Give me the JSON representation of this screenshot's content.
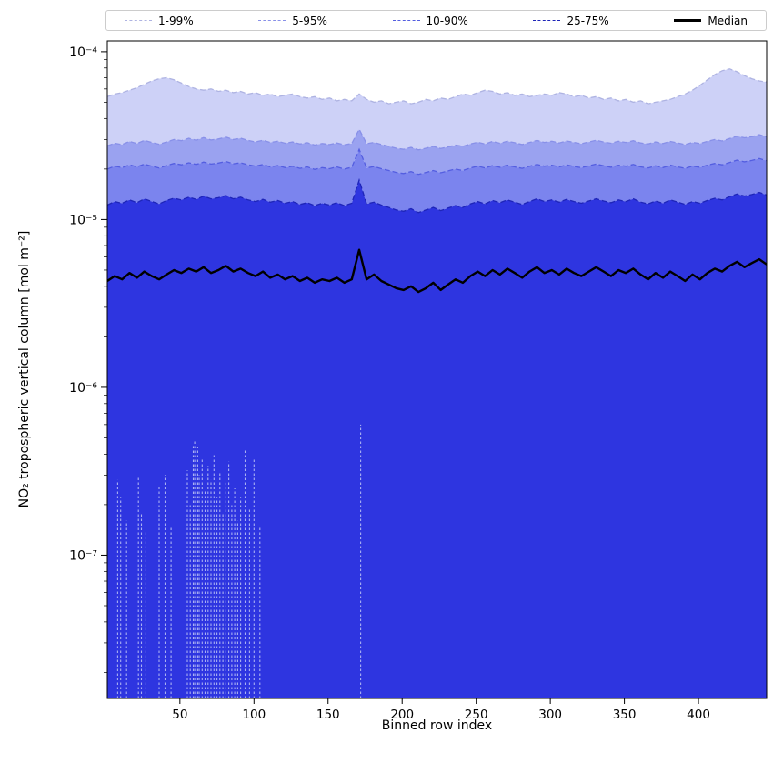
{
  "chart_data": {
    "type": "band",
    "title": "",
    "xlabel": "Binned row index",
    "ylabel": "NO₂ tropospheric vertical column [mol m⁻²]",
    "yscale": "log",
    "xlim": [
      1,
      446
    ],
    "ylim": [
      1.4e-08,
      0.000116
    ],
    "xticks": [
      50,
      100,
      150,
      200,
      250,
      300,
      350,
      400
    ],
    "yticks": [
      {
        "v": 0.0001,
        "label": "10⁻⁴"
      },
      {
        "v": 1e-05,
        "label": "10⁻⁵"
      },
      {
        "v": 1e-06,
        "label": "10⁻⁶"
      },
      {
        "v": 1e-07,
        "label": "10⁻⁷"
      }
    ],
    "x": [
      1,
      6,
      11,
      16,
      21,
      26,
      31,
      36,
      41,
      46,
      51,
      56,
      61,
      66,
      71,
      76,
      81,
      86,
      91,
      96,
      101,
      106,
      111,
      116,
      121,
      126,
      131,
      136,
      141,
      146,
      151,
      156,
      161,
      166,
      171,
      176,
      181,
      186,
      191,
      196,
      201,
      206,
      211,
      216,
      221,
      226,
      231,
      236,
      241,
      246,
      251,
      256,
      261,
      266,
      271,
      276,
      281,
      286,
      291,
      296,
      301,
      306,
      311,
      316,
      321,
      326,
      331,
      336,
      341,
      346,
      351,
      356,
      361,
      366,
      371,
      376,
      381,
      386,
      391,
      396,
      401,
      406,
      411,
      416,
      421,
      426,
      431,
      436,
      441,
      446
    ],
    "bands": [
      {
        "label": "1-99%",
        "edge": "p99",
        "scale": 1e-05,
        "fill": "#cdd1f7",
        "line": "#aeb3e2",
        "upper": [
          5.4,
          5.6,
          5.7,
          5.9,
          6.1,
          6.4,
          6.7,
          6.9,
          7.0,
          6.8,
          6.5,
          6.2,
          6.0,
          5.9,
          6.0,
          5.8,
          5.9,
          5.7,
          5.8,
          5.6,
          5.7,
          5.5,
          5.6,
          5.4,
          5.5,
          5.6,
          5.4,
          5.3,
          5.4,
          5.2,
          5.3,
          5.1,
          5.2,
          5.1,
          5.6,
          5.2,
          5.0,
          5.1,
          4.9,
          5.0,
          5.1,
          4.9,
          5.0,
          5.2,
          5.1,
          5.3,
          5.2,
          5.4,
          5.6,
          5.5,
          5.7,
          5.9,
          5.8,
          5.6,
          5.7,
          5.5,
          5.6,
          5.4,
          5.5,
          5.6,
          5.5,
          5.7,
          5.6,
          5.4,
          5.5,
          5.3,
          5.4,
          5.2,
          5.3,
          5.1,
          5.2,
          5.0,
          5.1,
          4.9,
          5.0,
          5.1,
          5.2,
          5.4,
          5.6,
          5.9,
          6.3,
          6.8,
          7.3,
          7.7,
          7.9,
          7.6,
          7.2,
          6.9,
          6.7,
          6.6
        ]
      },
      {
        "label": "5-95%",
        "edge": "p95",
        "scale": 1e-05,
        "fill": "#9aa2f0",
        "line": "#8890e8",
        "upper": [
          2.75,
          2.85,
          2.8,
          2.92,
          2.84,
          2.96,
          2.88,
          2.81,
          2.9,
          3.0,
          2.95,
          3.05,
          2.97,
          3.08,
          2.98,
          3.02,
          3.1,
          3.0,
          3.05,
          2.96,
          2.9,
          2.97,
          2.88,
          2.93,
          2.85,
          2.9,
          2.82,
          2.87,
          2.78,
          2.84,
          2.8,
          2.86,
          2.79,
          2.84,
          3.45,
          2.83,
          2.88,
          2.8,
          2.73,
          2.66,
          2.62,
          2.69,
          2.6,
          2.66,
          2.73,
          2.65,
          2.71,
          2.78,
          2.73,
          2.82,
          2.89,
          2.82,
          2.92,
          2.85,
          2.93,
          2.87,
          2.8,
          2.88,
          2.96,
          2.88,
          2.93,
          2.86,
          2.94,
          2.88,
          2.83,
          2.9,
          2.97,
          2.9,
          2.85,
          2.93,
          2.88,
          2.95,
          2.86,
          2.82,
          2.9,
          2.84,
          2.92,
          2.86,
          2.8,
          2.88,
          2.84,
          2.92,
          3.0,
          2.94,
          3.04,
          3.14,
          3.07,
          3.12,
          3.21,
          3.11
        ]
      },
      {
        "label": "10-90%",
        "edge": "p90",
        "scale": 1e-05,
        "fill": "#7b84ee",
        "line": "#545ee0",
        "upper": [
          2.0,
          2.08,
          2.04,
          2.12,
          2.06,
          2.14,
          2.08,
          2.03,
          2.1,
          2.16,
          2.12,
          2.18,
          2.13,
          2.2,
          2.14,
          2.17,
          2.22,
          2.15,
          2.18,
          2.12,
          2.08,
          2.13,
          2.06,
          2.1,
          2.04,
          2.08,
          2.02,
          2.06,
          1.99,
          2.04,
          2.01,
          2.06,
          2.0,
          2.05,
          2.62,
          2.03,
          2.07,
          2.01,
          1.96,
          1.91,
          1.88,
          1.93,
          1.86,
          1.91,
          1.96,
          1.9,
          1.95,
          2.0,
          1.96,
          2.03,
          2.08,
          2.03,
          2.1,
          2.05,
          2.11,
          2.06,
          2.02,
          2.08,
          2.13,
          2.08,
          2.11,
          2.06,
          2.12,
          2.07,
          2.04,
          2.09,
          2.14,
          2.09,
          2.05,
          2.11,
          2.08,
          2.13,
          2.06,
          2.03,
          2.09,
          2.04,
          2.11,
          2.06,
          2.02,
          2.08,
          2.05,
          2.11,
          2.16,
          2.12,
          2.19,
          2.26,
          2.21,
          2.25,
          2.31,
          2.24
        ]
      },
      {
        "label": "25-75%",
        "edge": "p75",
        "scale": 1e-05,
        "fill": "#2e35e0",
        "line": "#1e25b8",
        "upper": [
          1.22,
          1.28,
          1.25,
          1.31,
          1.26,
          1.33,
          1.28,
          1.24,
          1.3,
          1.34,
          1.31,
          1.36,
          1.32,
          1.38,
          1.33,
          1.35,
          1.39,
          1.33,
          1.36,
          1.31,
          1.28,
          1.32,
          1.27,
          1.3,
          1.25,
          1.28,
          1.23,
          1.26,
          1.21,
          1.25,
          1.22,
          1.26,
          1.21,
          1.25,
          1.72,
          1.24,
          1.27,
          1.22,
          1.18,
          1.14,
          1.12,
          1.16,
          1.1,
          1.14,
          1.18,
          1.13,
          1.17,
          1.21,
          1.18,
          1.24,
          1.28,
          1.24,
          1.3,
          1.26,
          1.31,
          1.27,
          1.23,
          1.28,
          1.33,
          1.28,
          1.31,
          1.27,
          1.32,
          1.28,
          1.25,
          1.29,
          1.33,
          1.29,
          1.26,
          1.31,
          1.28,
          1.33,
          1.27,
          1.24,
          1.29,
          1.25,
          1.31,
          1.27,
          1.23,
          1.28,
          1.25,
          1.3,
          1.34,
          1.31,
          1.37,
          1.42,
          1.38,
          1.41,
          1.45,
          1.4
        ]
      }
    ],
    "median": {
      "label": "Median",
      "color": "#000000",
      "scale": 1e-06,
      "values": [
        4.3,
        4.6,
        4.4,
        4.8,
        4.5,
        4.9,
        4.6,
        4.4,
        4.7,
        5.0,
        4.8,
        5.1,
        4.9,
        5.2,
        4.8,
        5.0,
        5.3,
        4.9,
        5.1,
        4.8,
        4.6,
        4.9,
        4.5,
        4.7,
        4.4,
        4.6,
        4.3,
        4.5,
        4.2,
        4.4,
        4.3,
        4.5,
        4.2,
        4.4,
        6.6,
        4.4,
        4.7,
        4.3,
        4.1,
        3.9,
        3.8,
        4.0,
        3.7,
        3.9,
        4.2,
        3.8,
        4.1,
        4.4,
        4.2,
        4.6,
        4.9,
        4.6,
        5.0,
        4.7,
        5.1,
        4.8,
        4.5,
        4.9,
        5.2,
        4.8,
        5.0,
        4.7,
        5.1,
        4.8,
        4.6,
        4.9,
        5.2,
        4.9,
        4.6,
        5.0,
        4.8,
        5.1,
        4.7,
        4.4,
        4.8,
        4.5,
        4.9,
        4.6,
        4.3,
        4.7,
        4.4,
        4.8,
        5.1,
        4.9,
        5.3,
        5.6,
        5.2,
        5.5,
        5.8,
        5.4
      ]
    },
    "lower_spikes": {
      "color": "#aab1f2",
      "scale": 1e-07,
      "points": [
        [
          8,
          2.8
        ],
        [
          10,
          2.2
        ],
        [
          14,
          1.6
        ],
        [
          22,
          2.9
        ],
        [
          24,
          1.8
        ],
        [
          27,
          1.4
        ],
        [
          36,
          2.6
        ],
        [
          40,
          3.0
        ],
        [
          44,
          1.5
        ],
        [
          55,
          3.2
        ],
        [
          57,
          2.0
        ],
        [
          59,
          4.6
        ],
        [
          60,
          4.8
        ],
        [
          62,
          4.4
        ],
        [
          63,
          3.0
        ],
        [
          65,
          3.8
        ],
        [
          67,
          2.4
        ],
        [
          69,
          3.4
        ],
        [
          71,
          2.8
        ],
        [
          73,
          4.0
        ],
        [
          75,
          2.2
        ],
        [
          77,
          3.1
        ],
        [
          79,
          1.8
        ],
        [
          81,
          2.7
        ],
        [
          83,
          3.6
        ],
        [
          85,
          2.0
        ],
        [
          87,
          2.5
        ],
        [
          89,
          1.6
        ],
        [
          91,
          2.2
        ],
        [
          94,
          4.2
        ],
        [
          97,
          1.9
        ],
        [
          100,
          3.8
        ],
        [
          104,
          1.5
        ],
        [
          172,
          6.0
        ]
      ]
    },
    "legend": [
      {
        "label": "1-99%",
        "color": "#aeb3e2",
        "style": "dashed"
      },
      {
        "label": "5-95%",
        "color": "#8890e8",
        "style": "dashed"
      },
      {
        "label": "10-90%",
        "color": "#545ee0",
        "style": "dashed"
      },
      {
        "label": "25-75%",
        "color": "#1e25b8",
        "style": "dashed"
      },
      {
        "label": "Median",
        "color": "#000000",
        "style": "solid"
      }
    ]
  }
}
